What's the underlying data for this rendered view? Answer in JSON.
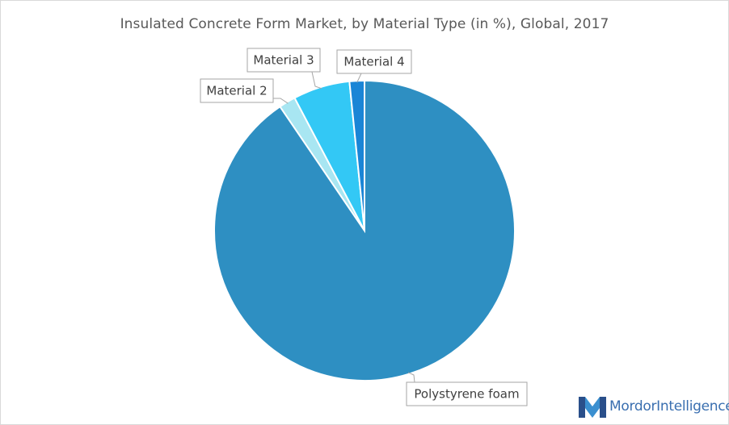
{
  "chart_data": {
    "type": "pie",
    "title": "Insulated Concrete Form Market, by Material Type (in %), Global, 2017",
    "slices": [
      {
        "name": "Polystyrene foam",
        "value": 90.5,
        "color": "#2e8fc2"
      },
      {
        "name": "Material 2",
        "value": 1.8,
        "color": "#a8e6f2"
      },
      {
        "name": "Material 3",
        "value": 6.1,
        "color": "#33c8f5"
      },
      {
        "name": "Material 4",
        "value": 1.6,
        "color": "#1a85d6"
      }
    ],
    "start_angle_deg": 0,
    "direction": "clockwise",
    "legend": "none",
    "labels": "callouts"
  },
  "branding": {
    "logo_name": "Mordor",
    "logo_suffix": "Intelligence"
  }
}
